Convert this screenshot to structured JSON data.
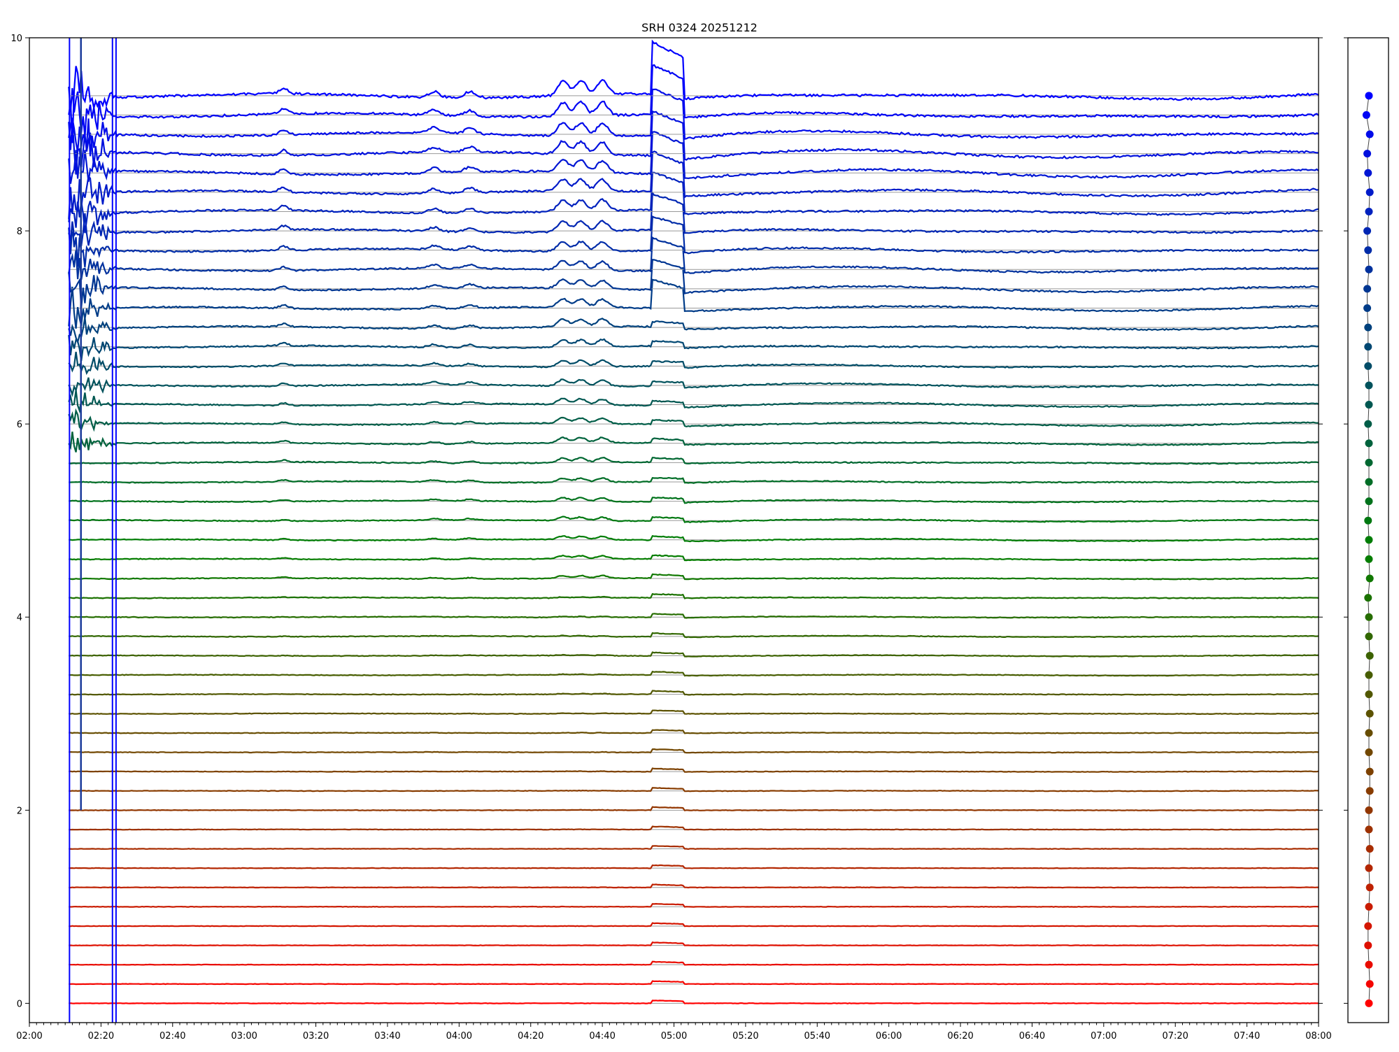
{
  "chart_data": {
    "type": "line",
    "title": "SRH 0324 20251212",
    "xlabel": "",
    "ylabel": "",
    "xlim": [
      "02:00",
      "08:00"
    ],
    "ylim": [
      -0.2,
      10
    ],
    "x_ticks": [
      "02:00",
      "02:20",
      "02:40",
      "03:00",
      "03:20",
      "03:40",
      "04:00",
      "04:20",
      "04:40",
      "05:00",
      "05:20",
      "05:40",
      "06:00",
      "06:20",
      "06:40",
      "07:00",
      "07:20",
      "07:40",
      "08:00"
    ],
    "y_ticks": [
      "0",
      "2",
      "4",
      "6",
      "8",
      "10"
    ],
    "grid": false,
    "series_count": 48,
    "series_offsets_step": 0.2,
    "series_start": "02:11",
    "series_end": "08:00",
    "color_low": "#ff0000",
    "color_mid": "#008000",
    "color_high": "#0000ff",
    "baseline_color": "#999999",
    "vertical_markers": [
      {
        "time": "02:11",
        "color": "#0000ff"
      },
      {
        "time": "02:23",
        "color": "#0000ff"
      },
      {
        "time": "02:24",
        "color": "#0000ff"
      }
    ],
    "events": [
      {
        "time": "03:11",
        "kind": "bump"
      },
      {
        "time": "03:53",
        "kind": "bump"
      },
      {
        "time": "04:03",
        "kind": "bump"
      },
      {
        "time": "04:29",
        "kind": "bump"
      },
      {
        "time": "04:34",
        "kind": "bump"
      },
      {
        "time": "04:40",
        "kind": "bump"
      },
      {
        "time": "04:54",
        "kind": "burst"
      },
      {
        "time": "05:03",
        "kind": "drop"
      }
    ],
    "side_panel": {
      "type": "scatter",
      "y_values_note_free": true,
      "ylim": [
        -0.2,
        10
      ]
    }
  }
}
